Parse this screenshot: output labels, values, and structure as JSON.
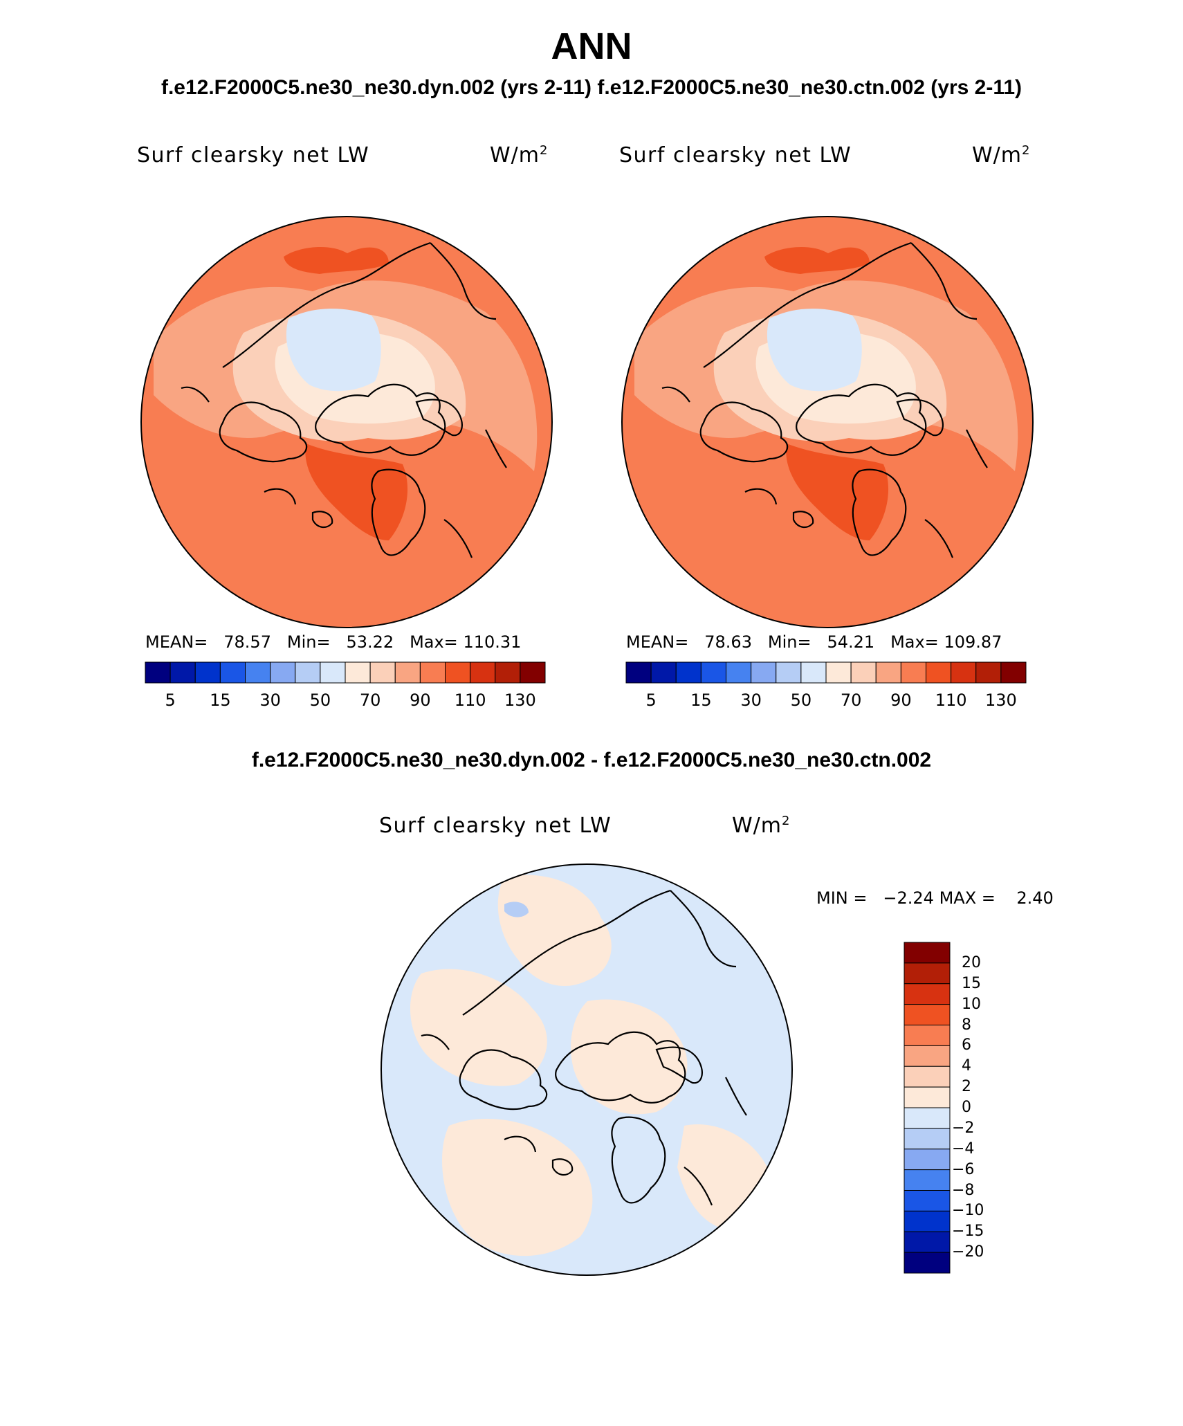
{
  "figure": {
    "title": "ANN",
    "subtitle": "f.e12.F2000C5.ne30_ne30.dyn.002 (yrs 2-11)  f.e12.F2000C5.ne30_ne30.ctn.002 (yrs 2-11)",
    "diff_title": "f.e12.F2000C5.ne30_ne30.dyn.002 - f.e12.F2000C5.ne30_ne30.ctn.002"
  },
  "panels": [
    {
      "field": "Surf clearsky net LW",
      "units_prefix": "W/m",
      "units_exp": "2",
      "stats": {
        "mean_label": "MEAN=",
        "mean": "78.57",
        "min_label": "Min=",
        "min": "53.22",
        "max_label": "Max=",
        "max": "110.31"
      }
    },
    {
      "field": "Surf clearsky net LW",
      "units_prefix": "W/m",
      "units_exp": "2",
      "stats": {
        "mean_label": "MEAN=",
        "mean": "78.63",
        "min_label": "Min=",
        "min": "54.21",
        "max_label": "Max=",
        "max": "109.87"
      }
    },
    {
      "field": "Surf clearsky net LW",
      "units_prefix": "W/m",
      "units_exp": "2",
      "stats": {
        "min_label": "MIN =",
        "min": "−2.24",
        "max_label": "MAX =",
        "max": "2.40"
      }
    }
  ],
  "colorbar_abs": {
    "colors": [
      "#00007f",
      "#0018a8",
      "#0033cc",
      "#1a56e6",
      "#4682f0",
      "#87a9f2",
      "#b5cdf5",
      "#d9e8fa",
      "#fde9d9",
      "#fbd0b9",
      "#f9a582",
      "#f87d52",
      "#ef5222",
      "#d73211",
      "#b21f07",
      "#820000"
    ],
    "tick_labels": [
      "5",
      "15",
      "30",
      "50",
      "70",
      "90",
      "110",
      "130"
    ]
  },
  "colorbar_diff": {
    "colors": [
      "#820000",
      "#b21f07",
      "#d73211",
      "#ef5222",
      "#f87d52",
      "#f9a582",
      "#fbd0b9",
      "#fde9d9",
      "#d9e8fa",
      "#b5cdf5",
      "#87a9f2",
      "#4682f0",
      "#1a56e6",
      "#0033cc",
      "#0018a8",
      "#00007f"
    ],
    "tick_labels": [
      "20",
      "15",
      "10",
      "8",
      "6",
      "4",
      "2",
      "0",
      "−2",
      "−4",
      "−6",
      "−8",
      "−10",
      "−15",
      "−20"
    ]
  },
  "map_colors": {
    "ocean_warm": "#f87d52",
    "mid_warm": "#f9a582",
    "light_warm": "#fbd0b9",
    "pale_warm": "#fde9d9",
    "ice": "#d9e8fa",
    "dark_warm": "#ef5222",
    "diff_pos": "#fde9d9",
    "diff_neg": "#d9e8fa",
    "diff_neg2": "#b5cdf5"
  }
}
